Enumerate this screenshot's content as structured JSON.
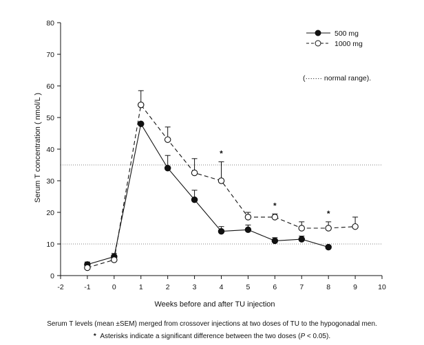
{
  "chart_data": {
    "type": "line",
    "xlabel": "Weeks before and after TU injection",
    "ylabel": "Serum T concentration ( nmol/L )",
    "xlim": [
      -2,
      10
    ],
    "ylim": [
      0,
      80
    ],
    "xticks": [
      -2,
      -1,
      0,
      1,
      2,
      3,
      4,
      5,
      6,
      7,
      8,
      9,
      10
    ],
    "yticks": [
      0,
      10,
      20,
      30,
      40,
      50,
      60,
      70,
      80
    ],
    "legend_position": "top-right",
    "normal_range_label": "(······· normal range).",
    "normal_range": [
      10,
      35
    ],
    "series": [
      {
        "name": "500 mg",
        "marker": "filled-circle",
        "line": "solid",
        "x": [
          -1,
          0,
          1,
          2,
          3,
          4,
          5,
          6,
          7,
          8
        ],
        "y": [
          3.5,
          6.0,
          48.0,
          34.0,
          24.0,
          14.0,
          14.5,
          11.0,
          11.5,
          9.0
        ],
        "err": [
          0.8,
          1.0,
          0.0,
          4.0,
          3.0,
          1.5,
          1.5,
          1.0,
          1.0,
          0.5
        ]
      },
      {
        "name": "1000 mg",
        "marker": "open-circle",
        "line": "dashed",
        "x": [
          -1,
          0,
          1,
          2,
          3,
          4,
          5,
          6,
          7,
          8,
          9
        ],
        "y": [
          2.5,
          5.0,
          54.0,
          43.0,
          32.5,
          30.0,
          18.5,
          18.5,
          15.0,
          15.0,
          15.5
        ],
        "err": [
          0.8,
          0.8,
          4.5,
          4.0,
          4.5,
          6.0,
          1.5,
          1.0,
          2.0,
          2.0,
          3.0
        ]
      }
    ],
    "significance_marker": "*",
    "significant_weeks": [
      4,
      6,
      8
    ]
  },
  "caption": {
    "line1": "Serum T levels (mean ±SEM) merged from crossover injections at two doses of TU to the hypogonadal men.",
    "line2_star": "*",
    "line2_text": "Asterisks indicate a significant difference between the two doses (",
    "line2_p": "P",
    "line2_end": " < 0.05)."
  }
}
